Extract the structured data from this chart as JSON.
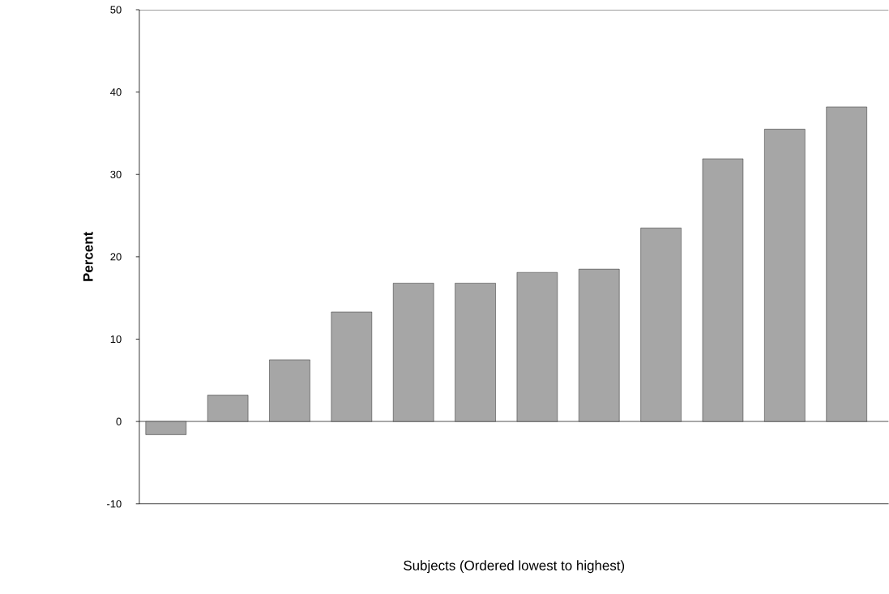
{
  "chart_data": {
    "type": "bar",
    "xlabel": "Subjects (Ordered lowest to highest)",
    "ylabel": "Percent",
    "categories": [
      null,
      null,
      null,
      null,
      null,
      null,
      null,
      null,
      null,
      null,
      null,
      null
    ],
    "values": [
      -1.6,
      3.2,
      7.5,
      13.3,
      16.8,
      16.8,
      18.1,
      18.5,
      23.5,
      31.9,
      35.5,
      38.2
    ],
    "color": "#a6a6a6",
    "ylim": [
      -10,
      50
    ],
    "yticks": [
      -10,
      0,
      10,
      20,
      30,
      40,
      50
    ]
  }
}
